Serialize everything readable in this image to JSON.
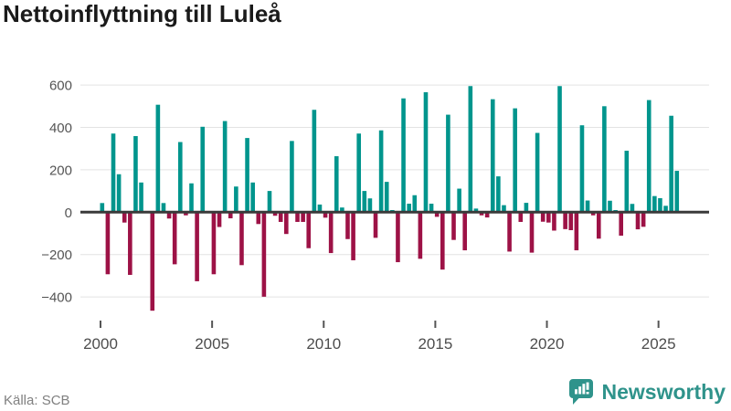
{
  "title": "Nettoinflyttning till Luleå",
  "source": "Källa: SCB",
  "brand": {
    "name": "Newsworthy",
    "color": "#2f938b"
  },
  "chart_data": {
    "type": "bar",
    "title": "Nettoinflyttning till Luleå",
    "frequency": "quarterly",
    "start": "2000 Q1",
    "end": "2025 Q4",
    "x_tick_years": [
      2000,
      2005,
      2010,
      2015,
      2020,
      2025
    ],
    "y_ticks": [
      600,
      400,
      200,
      0,
      -200,
      -400
    ],
    "ylim": [
      -500,
      620
    ],
    "grid": true,
    "legend": false,
    "positive_color": "#00958d",
    "negative_color": "#9d1246",
    "grid_color": "#e3e3e3",
    "zero_line_color": "#3a3a3a",
    "tick_label_color": "#4d4d4d",
    "quarters": [
      {
        "year": 2000,
        "values": [
          43,
          -293,
          371,
          179
        ]
      },
      {
        "year": 2001,
        "values": [
          -49,
          -296,
          359,
          140
        ]
      },
      {
        "year": 2002,
        "values": [
          0,
          -465,
          507,
          43
        ]
      },
      {
        "year": 2003,
        "values": [
          -30,
          -246,
          331,
          -15
        ]
      },
      {
        "year": 2004,
        "values": [
          136,
          -326,
          403,
          0
        ]
      },
      {
        "year": 2005,
        "values": [
          -293,
          -70,
          430,
          -29
        ]
      },
      {
        "year": 2006,
        "values": [
          121,
          -250,
          350,
          140
        ]
      },
      {
        "year": 2007,
        "values": [
          -56,
          -399,
          100,
          -17
        ]
      },
      {
        "year": 2008,
        "values": [
          -46,
          -103,
          336,
          -46
        ]
      },
      {
        "year": 2009,
        "values": [
          -46,
          -170,
          483,
          36
        ]
      },
      {
        "year": 2010,
        "values": [
          -26,
          -193,
          264,
          22
        ]
      },
      {
        "year": 2011,
        "values": [
          -127,
          -227,
          371,
          100
        ]
      },
      {
        "year": 2012,
        "values": [
          65,
          -121,
          386,
          143
        ]
      },
      {
        "year": 2013,
        "values": [
          10,
          -236,
          537,
          40
        ]
      },
      {
        "year": 2014,
        "values": [
          80,
          -220,
          566,
          40
        ]
      },
      {
        "year": 2015,
        "values": [
          -22,
          -271,
          460,
          -131
        ]
      },
      {
        "year": 2016,
        "values": [
          111,
          -180,
          595,
          17
        ]
      },
      {
        "year": 2017,
        "values": [
          -15,
          -25,
          533,
          169
        ]
      },
      {
        "year": 2018,
        "values": [
          33,
          -186,
          490,
          -46
        ]
      },
      {
        "year": 2019,
        "values": [
          44,
          -191,
          374,
          -45
        ]
      },
      {
        "year": 2020,
        "values": [
          -49,
          -87,
          595,
          -80
        ]
      },
      {
        "year": 2021,
        "values": [
          -85,
          -180,
          410,
          55
        ]
      },
      {
        "year": 2022,
        "values": [
          -15,
          -125,
          500,
          54
        ]
      },
      {
        "year": 2023,
        "values": [
          10,
          -111,
          290,
          39
        ]
      },
      {
        "year": 2024,
        "values": [
          -81,
          -69,
          529,
          76
        ]
      },
      {
        "year": 2025,
        "values": [
          66,
          30,
          455,
          195
        ]
      }
    ]
  }
}
